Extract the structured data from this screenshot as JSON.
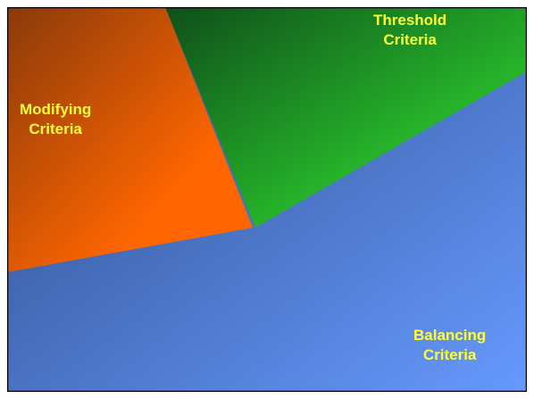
{
  "diagram": {
    "regions": [
      {
        "id": "modifying",
        "lines": [
          "Modifying",
          "Criteria"
        ],
        "color_light": "#ff6600",
        "color_dark": "#8a3a0a"
      },
      {
        "id": "threshold",
        "lines": [
          "Threshold",
          "Criteria"
        ],
        "color_light": "#33ee33",
        "color_dark": "#0f4f1a"
      },
      {
        "id": "balancing",
        "lines": [
          "Balancing",
          "Criteria"
        ],
        "color_light": "#6699ff",
        "color_dark": "#2e4c86"
      }
    ],
    "label_color": "#ffff33",
    "border_color": "#000000"
  }
}
